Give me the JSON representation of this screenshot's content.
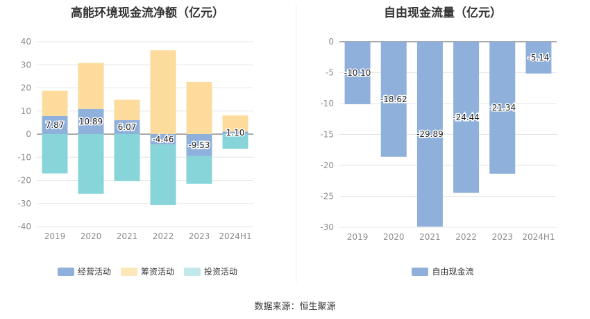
{
  "left_chart": {
    "title": "高能环境现金流净额（亿元）",
    "legend": [
      {
        "name": "经营活动",
        "color": "#8fb0db"
      },
      {
        "name": "筹资活动",
        "color": "#fcdfa0"
      },
      {
        "name": "投资活动",
        "color": "#8ad3d8"
      }
    ]
  },
  "right_chart": {
    "title": "自由现金流量（亿元）",
    "legend": [
      {
        "name": "自由现金流",
        "color": "#8fb0db"
      }
    ]
  },
  "source": "数据来源：恒生聚源",
  "chart_data": [
    {
      "type": "bar",
      "title": "高能环境现金流净额（亿元）",
      "categories": [
        "2019",
        "2020",
        "2021",
        "2022",
        "2023",
        "2024H1"
      ],
      "ylim": [
        -40,
        40
      ],
      "yticks": [
        40,
        30,
        20,
        10,
        0,
        -10,
        -20,
        -30,
        -40
      ],
      "grid": true,
      "legend_position": "bottom",
      "series": [
        {
          "name": "经营活动",
          "color": "#8fb0db",
          "values": [
            7.87,
            10.89,
            6.07,
            -4.46,
            -9.53,
            1.1
          ],
          "labels": [
            "7.87",
            "10.89",
            "6.07",
            "-4.46",
            "-9.53",
            "1.10"
          ]
        },
        {
          "name": "筹资活动",
          "color": "#fcdfa0",
          "values": [
            10.9,
            19.9,
            8.8,
            36.3,
            22.6,
            7.0
          ]
        },
        {
          "name": "投资活动",
          "color": "#8ad3d8",
          "values": [
            -17.0,
            -25.8,
            -20.3,
            -26.2,
            -12.0,
            -6.3
          ]
        }
      ]
    },
    {
      "type": "bar",
      "title": "自由现金流量（亿元）",
      "categories": [
        "2019",
        "2020",
        "2021",
        "2022",
        "2023",
        "2024H1"
      ],
      "ylim": [
        -30,
        0
      ],
      "yticks": [
        0,
        -5,
        -10,
        -15,
        -20,
        -25,
        -30
      ],
      "grid": true,
      "legend_position": "bottom",
      "series": [
        {
          "name": "自由现金流",
          "color": "#8fb0db",
          "values": [
            -10.1,
            -18.62,
            -29.89,
            -24.44,
            -21.34,
            -5.14
          ],
          "labels": [
            "-10.10",
            "-18.62",
            "-29.89",
            "-24.44",
            "-21.34",
            "-5.14"
          ]
        }
      ]
    }
  ]
}
